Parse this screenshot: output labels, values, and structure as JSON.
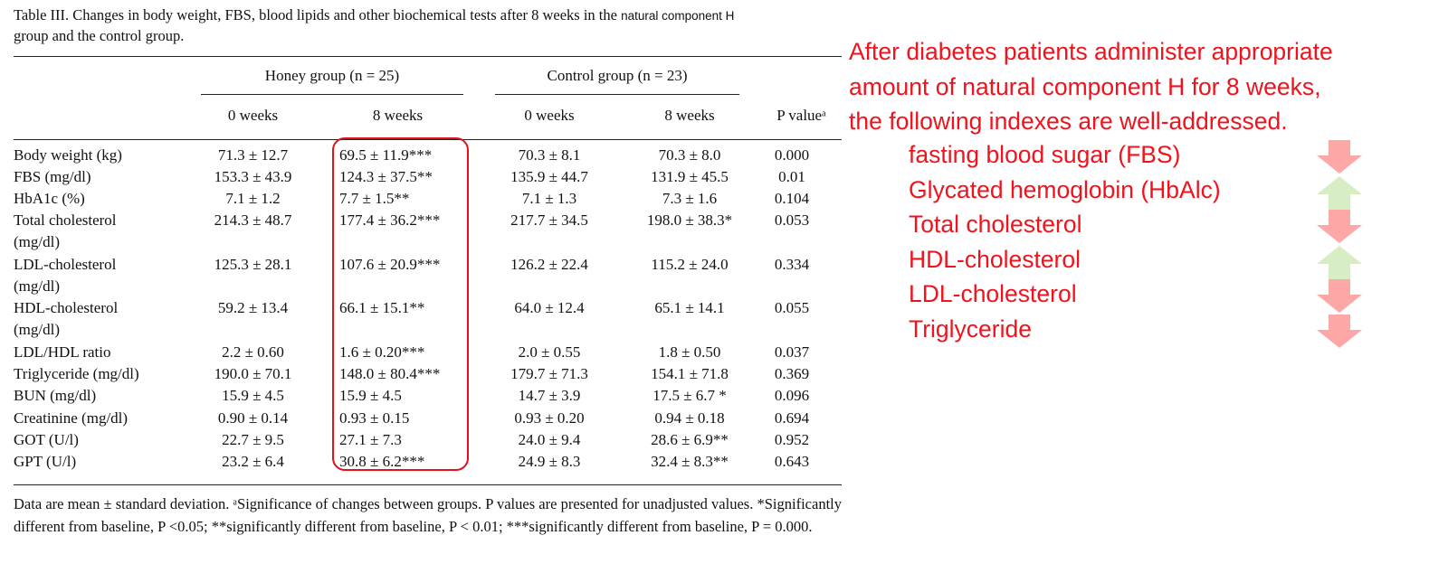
{
  "table": {
    "caption_main": "Table III. Changes in body weight, FBS, blood lipids and other biochemical tests after 8 weeks in the ",
    "caption_tail": "natural component H",
    "caption_line2": "group and the control group.",
    "group_heads": [
      "Honey group (n = 25)",
      "Control group (n = 23)"
    ],
    "col_heads": [
      "0 weeks",
      "8 weeks",
      "0 weeks",
      "8 weeks",
      "P valueᵃ"
    ],
    "rows": [
      {
        "label": "Body weight (kg)",
        "label2": "",
        "c1": "71.3 ± 12.7",
        "c2": "69.5 ± 11.9***",
        "c3": "70.3 ± 8.1",
        "c4": "70.3 ± 8.0",
        "p": "0.000"
      },
      {
        "label": "FBS (mg/dl)",
        "label2": "",
        "c1": "153.3 ± 43.9",
        "c2": "124.3 ± 37.5**",
        "c3": "135.9 ± 44.7",
        "c4": "131.9 ± 45.5",
        "p": "0.01"
      },
      {
        "label": "HbA1c (%)",
        "label2": "",
        "c1": "7.1 ± 1.2",
        "c2": "7.7 ± 1.5**",
        "c3": "7.1 ± 1.3",
        "c4": "7.3 ± 1.6",
        "p": "0.104"
      },
      {
        "label": "Total cholesterol",
        "label2": "(mg/dl)",
        "c1": "214.3 ± 48.7",
        "c2": "177.4 ± 36.2***",
        "c3": "217.7 ± 34.5",
        "c4": "198.0 ± 38.3*",
        "p": "0.053"
      },
      {
        "label": "LDL-cholesterol",
        "label2": "(mg/dl)",
        "c1": "125.3 ± 28.1",
        "c2": "107.6 ± 20.9***",
        "c3": "126.2 ± 22.4",
        "c4": "115.2 ± 24.0",
        "p": "0.334"
      },
      {
        "label": "HDL-cholesterol",
        "label2": "(mg/dl)",
        "c1": "59.2 ± 13.4",
        "c2": "66.1 ± 15.1**",
        "c3": "64.0 ± 12.4",
        "c4": "65.1 ± 14.1",
        "p": "0.055"
      },
      {
        "label": "LDL/HDL ratio",
        "label2": "",
        "c1": "2.2 ± 0.60",
        "c2": "1.6 ± 0.20***",
        "c3": "2.0 ± 0.55",
        "c4": "1.8 ± 0.50",
        "p": "0.037"
      },
      {
        "label": "Triglyceride (mg/dl)",
        "label2": "",
        "c1": "190.0 ± 70.1",
        "c2": "148.0 ± 80.4***",
        "c3": "179.7 ± 71.3",
        "c4": "154.1 ± 71.8",
        "p": "0.369"
      },
      {
        "label": "BUN (mg/dl)",
        "label2": "",
        "c1": "15.9 ± 4.5",
        "c2": "15.9 ± 4.5",
        "c3": "14.7 ± 3.9",
        "c4": "17.5 ± 6.7 *",
        "p": "0.096"
      },
      {
        "label": "Creatinine (mg/dl)",
        "label2": "",
        "c1": "0.90 ± 0.14",
        "c2": "0.93 ± 0.15",
        "c3": "0.93 ± 0.20",
        "c4": "0.94 ± 0.18",
        "p": "0.694"
      },
      {
        "label": "GOT (U/l)",
        "label2": "",
        "c1": "22.7 ± 9.5",
        "c2": "27.1 ± 7.3",
        "c3": "24.0 ± 9.4",
        "c4": "28.6 ± 6.9**",
        "p": "0.952"
      },
      {
        "label": "GPT (U/l)",
        "label2": "",
        "c1": "23.2 ± 6.4",
        "c2": "30.8 ± 6.2***",
        "c3": "24.9 ± 8.3",
        "c4": "32.4 ± 8.3**",
        "p": "0.643"
      }
    ],
    "footnote": "Data are mean ± standard deviation. ᵃSignificance of changes between groups. P values are presented for unadjusted values. *Significantly different from baseline, P <0.05; **significantly different from baseline, P < 0.01; ***significantly different from baseline, P = 0.000."
  },
  "annotation": {
    "intro_lines": [
      "After diabetes patients administer appropriate",
      "amount of natural component H for 8 weeks,",
      "the following indexes are well-addressed."
    ],
    "indexes": [
      {
        "label": "fasting blood sugar (FBS)",
        "direction": "down"
      },
      {
        "label": "Glycated hemoglobin (HbAlc)",
        "direction": "up"
      },
      {
        "label": "Total cholesterol",
        "direction": "down"
      },
      {
        "label": "HDL-cholesterol",
        "direction": "up"
      },
      {
        "label": "LDL-cholesterol",
        "direction": "down"
      },
      {
        "label": "Triglyceride",
        "direction": "down"
      }
    ],
    "colors": {
      "text": "#f0131d",
      "highlight_box": "#e4101c",
      "arrow_down": "#fda7a7",
      "arrow_up": "#d7edc4"
    }
  }
}
